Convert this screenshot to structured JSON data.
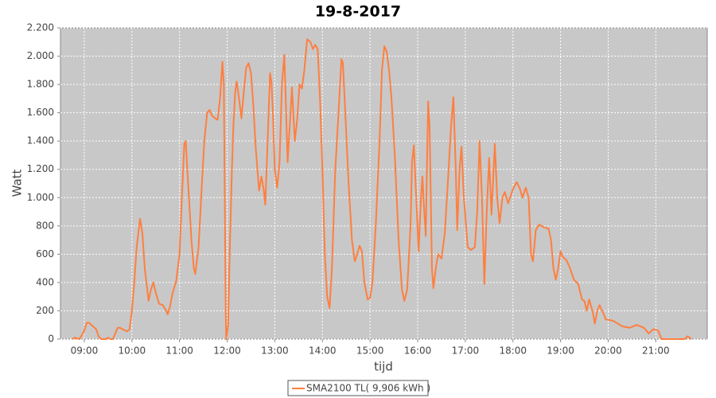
{
  "chart_data": {
    "type": "line",
    "title": "19-8-2017",
    "x_label": "tijd",
    "y_label": "Watt",
    "x": [
      8.75,
      8.8,
      8.85,
      8.9,
      9.0,
      9.05,
      9.1,
      9.15,
      9.25,
      9.3,
      9.35,
      9.45,
      9.5,
      9.55,
      9.6,
      9.65,
      9.7,
      9.75,
      9.8,
      9.9,
      9.95,
      10.0,
      10.05,
      10.1,
      10.17,
      10.22,
      10.27,
      10.35,
      10.4,
      10.45,
      10.5,
      10.57,
      10.65,
      10.72,
      10.75,
      10.8,
      10.85,
      10.93,
      11.0,
      11.05,
      11.1,
      11.13,
      11.18,
      11.25,
      11.3,
      11.33,
      11.4,
      11.47,
      11.52,
      11.58,
      11.63,
      11.68,
      11.75,
      11.8,
      11.85,
      11.9,
      11.93,
      11.95,
      11.97,
      11.98,
      12.02,
      12.06,
      12.1,
      12.13,
      12.17,
      12.2,
      12.25,
      12.3,
      12.35,
      12.4,
      12.45,
      12.5,
      12.55,
      12.6,
      12.67,
      12.72,
      12.77,
      12.8,
      12.85,
      12.9,
      12.93,
      12.96,
      13.0,
      13.05,
      13.1,
      13.15,
      13.2,
      13.23,
      13.27,
      13.33,
      13.36,
      13.42,
      13.47,
      13.52,
      13.57,
      13.62,
      13.68,
      13.75,
      13.8,
      13.85,
      13.9,
      13.95,
      14.0,
      14.05,
      14.1,
      14.15,
      14.2,
      14.27,
      14.33,
      14.4,
      14.43,
      14.48,
      14.55,
      14.62,
      14.68,
      14.73,
      14.78,
      14.83,
      14.88,
      14.95,
      15.0,
      15.05,
      15.12,
      15.2,
      15.25,
      15.3,
      15.35,
      15.4,
      15.45,
      15.52,
      15.6,
      15.67,
      15.72,
      15.78,
      15.85,
      15.88,
      15.92,
      15.97,
      16.02,
      16.07,
      16.1,
      16.13,
      16.17,
      16.22,
      16.25,
      16.3,
      16.33,
      16.38,
      16.43,
      16.5,
      16.57,
      16.65,
      16.7,
      16.75,
      16.8,
      16.83,
      16.88,
      16.92,
      16.97,
      17.05,
      17.12,
      17.2,
      17.25,
      17.3,
      17.35,
      17.4,
      17.45,
      17.5,
      17.55,
      17.62,
      17.67,
      17.72,
      17.78,
      17.83,
      17.9,
      18.0,
      18.08,
      18.15,
      18.2,
      18.27,
      18.33,
      18.38,
      18.42,
      18.48,
      18.55,
      18.65,
      18.75,
      18.8,
      18.85,
      18.9,
      18.95,
      19.0,
      19.05,
      19.12,
      19.2,
      19.28,
      19.37,
      19.45,
      19.5,
      19.55,
      19.6,
      19.67,
      19.72,
      19.77,
      19.82,
      19.9,
      19.95,
      20.1,
      20.2,
      20.3,
      20.45,
      20.6,
      20.75,
      20.85,
      20.95,
      21.05,
      21.12,
      21.6,
      21.67,
      21.75
    ],
    "series": [
      {
        "name": "SMA2100 TL( 9,906 kWh )",
        "color": "#ff7f3f",
        "values": [
          0,
          10,
          5,
          0,
          60,
          115,
          115,
          100,
          70,
          20,
          0,
          0,
          10,
          0,
          0,
          40,
          80,
          80,
          70,
          55,
          70,
          200,
          400,
          650,
          850,
          750,
          500,
          270,
          350,
          400,
          330,
          250,
          240,
          200,
          175,
          230,
          320,
          410,
          600,
          1000,
          1380,
          1400,
          1100,
          700,
          500,
          460,
          650,
          1100,
          1400,
          1600,
          1620,
          1580,
          1560,
          1550,
          1700,
          1960,
          1800,
          1000,
          200,
          0,
          100,
          700,
          1200,
          1500,
          1750,
          1820,
          1700,
          1560,
          1750,
          1920,
          1950,
          1880,
          1650,
          1350,
          1050,
          1150,
          1050,
          950,
          1400,
          1880,
          1820,
          1600,
          1200,
          1070,
          1250,
          1800,
          2010,
          1700,
          1250,
          1600,
          1780,
          1400,
          1550,
          1800,
          1770,
          1900,
          2120,
          2100,
          2050,
          2080,
          2050,
          1700,
          1200,
          600,
          300,
          220,
          500,
          1200,
          1550,
          1980,
          1950,
          1600,
          1100,
          700,
          550,
          600,
          660,
          620,
          400,
          280,
          290,
          400,
          800,
          1400,
          1900,
          2070,
          2030,
          1900,
          1700,
          1300,
          700,
          350,
          270,
          350,
          800,
          1250,
          1370,
          1000,
          620,
          1000,
          1150,
          950,
          730,
          1680,
          1500,
          500,
          360,
          500,
          600,
          570,
          750,
          1200,
          1500,
          1710,
          1200,
          770,
          1200,
          1360,
          1000,
          650,
          630,
          650,
          900,
          1400,
          1000,
          390,
          900,
          1280,
          880,
          1380,
          1000,
          820,
          1000,
          1040,
          960,
          1060,
          1110,
          1060,
          1000,
          1070,
          1000,
          600,
          550,
          770,
          810,
          790,
          780,
          700,
          500,
          420,
          500,
          620,
          580,
          560,
          500,
          420,
          390,
          280,
          270,
          200,
          280,
          200,
          110,
          200,
          240,
          180,
          140,
          130,
          110,
          90,
          80,
          100,
          80,
          40,
          70,
          60,
          0,
          0,
          20,
          0
        ]
      }
    ],
    "xlim": [
      8.5,
      22.08
    ],
    "xticks": [
      {
        "value": 9,
        "label": "09:00"
      },
      {
        "value": 10,
        "label": "10:00"
      },
      {
        "value": 11,
        "label": "11:00"
      },
      {
        "value": 12,
        "label": "12:00"
      },
      {
        "value": 13,
        "label": "13:00"
      },
      {
        "value": 14,
        "label": "14:00"
      },
      {
        "value": 15,
        "label": "15:00"
      },
      {
        "value": 16,
        "label": "16:00"
      },
      {
        "value": 17,
        "label": "17:00"
      },
      {
        "value": 18,
        "label": "18:00"
      },
      {
        "value": 19,
        "label": "19:00"
      },
      {
        "value": 20,
        "label": "20:00"
      },
      {
        "value": 21,
        "label": "21:00"
      }
    ],
    "ylim": [
      0,
      2200
    ],
    "yticks": [
      0,
      200,
      400,
      600,
      800,
      {
        "value": 1000,
        "label": "1.000"
      },
      {
        "value": 1200,
        "label": "1.200"
      },
      {
        "value": 1400,
        "label": "1.400"
      },
      {
        "value": 1600,
        "label": "1.600"
      },
      {
        "value": 1800,
        "label": "1.800"
      },
      {
        "value": 2000,
        "label": "2.000"
      },
      {
        "value": 2200,
        "label": "2.200"
      }
    ],
    "grid": true
  }
}
